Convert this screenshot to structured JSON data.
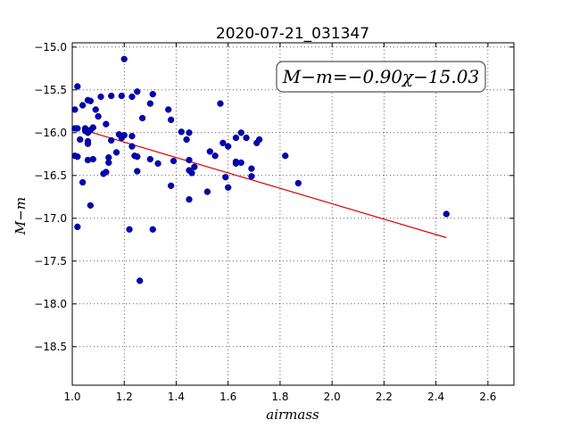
{
  "chart_data": {
    "type": "scatter",
    "title": "2020-07-21_031347",
    "xlabel": "airmass",
    "ylabel": "M−m",
    "xlim": [
      1.0,
      2.7
    ],
    "ylim": [
      -18.95,
      -14.95
    ],
    "y_inverted": true,
    "grid": true,
    "xticks": [
      "1.0",
      "1.2",
      "1.4",
      "1.6",
      "1.8",
      "2.0",
      "2.2",
      "2.4",
      "2.6"
    ],
    "yticks": [
      "−15.0",
      "−15.5",
      "−16.0",
      "−16.5",
      "−17.0",
      "−17.5",
      "−18.0",
      "−18.5"
    ],
    "xtick_values": [
      1.0,
      1.2,
      1.4,
      1.6,
      1.8,
      2.0,
      2.2,
      2.4,
      2.6
    ],
    "ytick_values": [
      -15.0,
      -15.5,
      -16.0,
      -16.5,
      -17.0,
      -17.5,
      -18.0,
      -18.5
    ],
    "annotation": "M−m=−0.90χ−15.03",
    "point_color": "#0000cc",
    "fit_color": "#dd0000",
    "fit": {
      "slope": -0.9,
      "intercept": -15.03,
      "x_range": [
        1.05,
        2.44
      ]
    },
    "points": [
      [
        1.01,
        -15.73
      ],
      [
        1.01,
        -15.95
      ],
      [
        1.01,
        -16.27
      ],
      [
        1.02,
        -15.46
      ],
      [
        1.02,
        -15.95
      ],
      [
        1.02,
        -16.28
      ],
      [
        1.02,
        -17.1
      ],
      [
        1.03,
        -16.08
      ],
      [
        1.04,
        -15.68
      ],
      [
        1.04,
        -16.58
      ],
      [
        1.05,
        -15.95
      ],
      [
        1.05,
        -15.98
      ],
      [
        1.06,
        -16.0
      ],
      [
        1.06,
        -16.1
      ],
      [
        1.06,
        -16.13
      ],
      [
        1.06,
        -15.62
      ],
      [
        1.06,
        -16.32
      ],
      [
        1.07,
        -15.63
      ],
      [
        1.07,
        -15.97
      ],
      [
        1.07,
        -16.85
      ],
      [
        1.08,
        -15.94
      ],
      [
        1.08,
        -16.31
      ],
      [
        1.09,
        -15.73
      ],
      [
        1.1,
        -15.81
      ],
      [
        1.11,
        -15.58
      ],
      [
        1.12,
        -16.48
      ],
      [
        1.13,
        -16.46
      ],
      [
        1.13,
        -15.9
      ],
      [
        1.14,
        -16.35
      ],
      [
        1.14,
        -16.29
      ],
      [
        1.15,
        -15.57
      ],
      [
        1.15,
        -16.09
      ],
      [
        1.17,
        -16.23
      ],
      [
        1.18,
        -16.02
      ],
      [
        1.19,
        -15.57
      ],
      [
        1.19,
        -16.06
      ],
      [
        1.2,
        -15.14
      ],
      [
        1.2,
        -16.03
      ],
      [
        1.22,
        -17.13
      ],
      [
        1.23,
        -16.04
      ],
      [
        1.23,
        -16.16
      ],
      [
        1.23,
        -15.58
      ],
      [
        1.24,
        -16.27
      ],
      [
        1.25,
        -15.52
      ],
      [
        1.25,
        -16.45
      ],
      [
        1.25,
        -16.28
      ],
      [
        1.26,
        -17.73
      ],
      [
        1.27,
        -15.83
      ],
      [
        1.3,
        -15.66
      ],
      [
        1.3,
        -16.31
      ],
      [
        1.31,
        -15.55
      ],
      [
        1.31,
        -17.13
      ],
      [
        1.33,
        -16.36
      ],
      [
        1.37,
        -15.73
      ],
      [
        1.38,
        -15.85
      ],
      [
        1.38,
        -16.62
      ],
      [
        1.39,
        -16.33
      ],
      [
        1.42,
        -15.99
      ],
      [
        1.44,
        -16.08
      ],
      [
        1.45,
        -16.0
      ],
      [
        1.45,
        -16.32
      ],
      [
        1.45,
        -16.44
      ],
      [
        1.45,
        -16.78
      ],
      [
        1.46,
        -16.47
      ],
      [
        1.47,
        -16.4
      ],
      [
        1.52,
        -16.69
      ],
      [
        1.53,
        -16.22
      ],
      [
        1.55,
        -16.27
      ],
      [
        1.57,
        -15.66
      ],
      [
        1.58,
        -16.12
      ],
      [
        1.59,
        -16.52
      ],
      [
        1.6,
        -16.64
      ],
      [
        1.6,
        -16.16
      ],
      [
        1.63,
        -16.06
      ],
      [
        1.63,
        -16.34
      ],
      [
        1.63,
        -16.36
      ],
      [
        1.65,
        -16.0
      ],
      [
        1.65,
        -16.35
      ],
      [
        1.67,
        -16.06
      ],
      [
        1.69,
        -16.42
      ],
      [
        1.69,
        -16.51
      ],
      [
        1.71,
        -16.12
      ],
      [
        1.72,
        -16.08
      ],
      [
        1.82,
        -16.27
      ],
      [
        1.87,
        -16.59
      ],
      [
        2.44,
        -16.95
      ]
    ]
  }
}
